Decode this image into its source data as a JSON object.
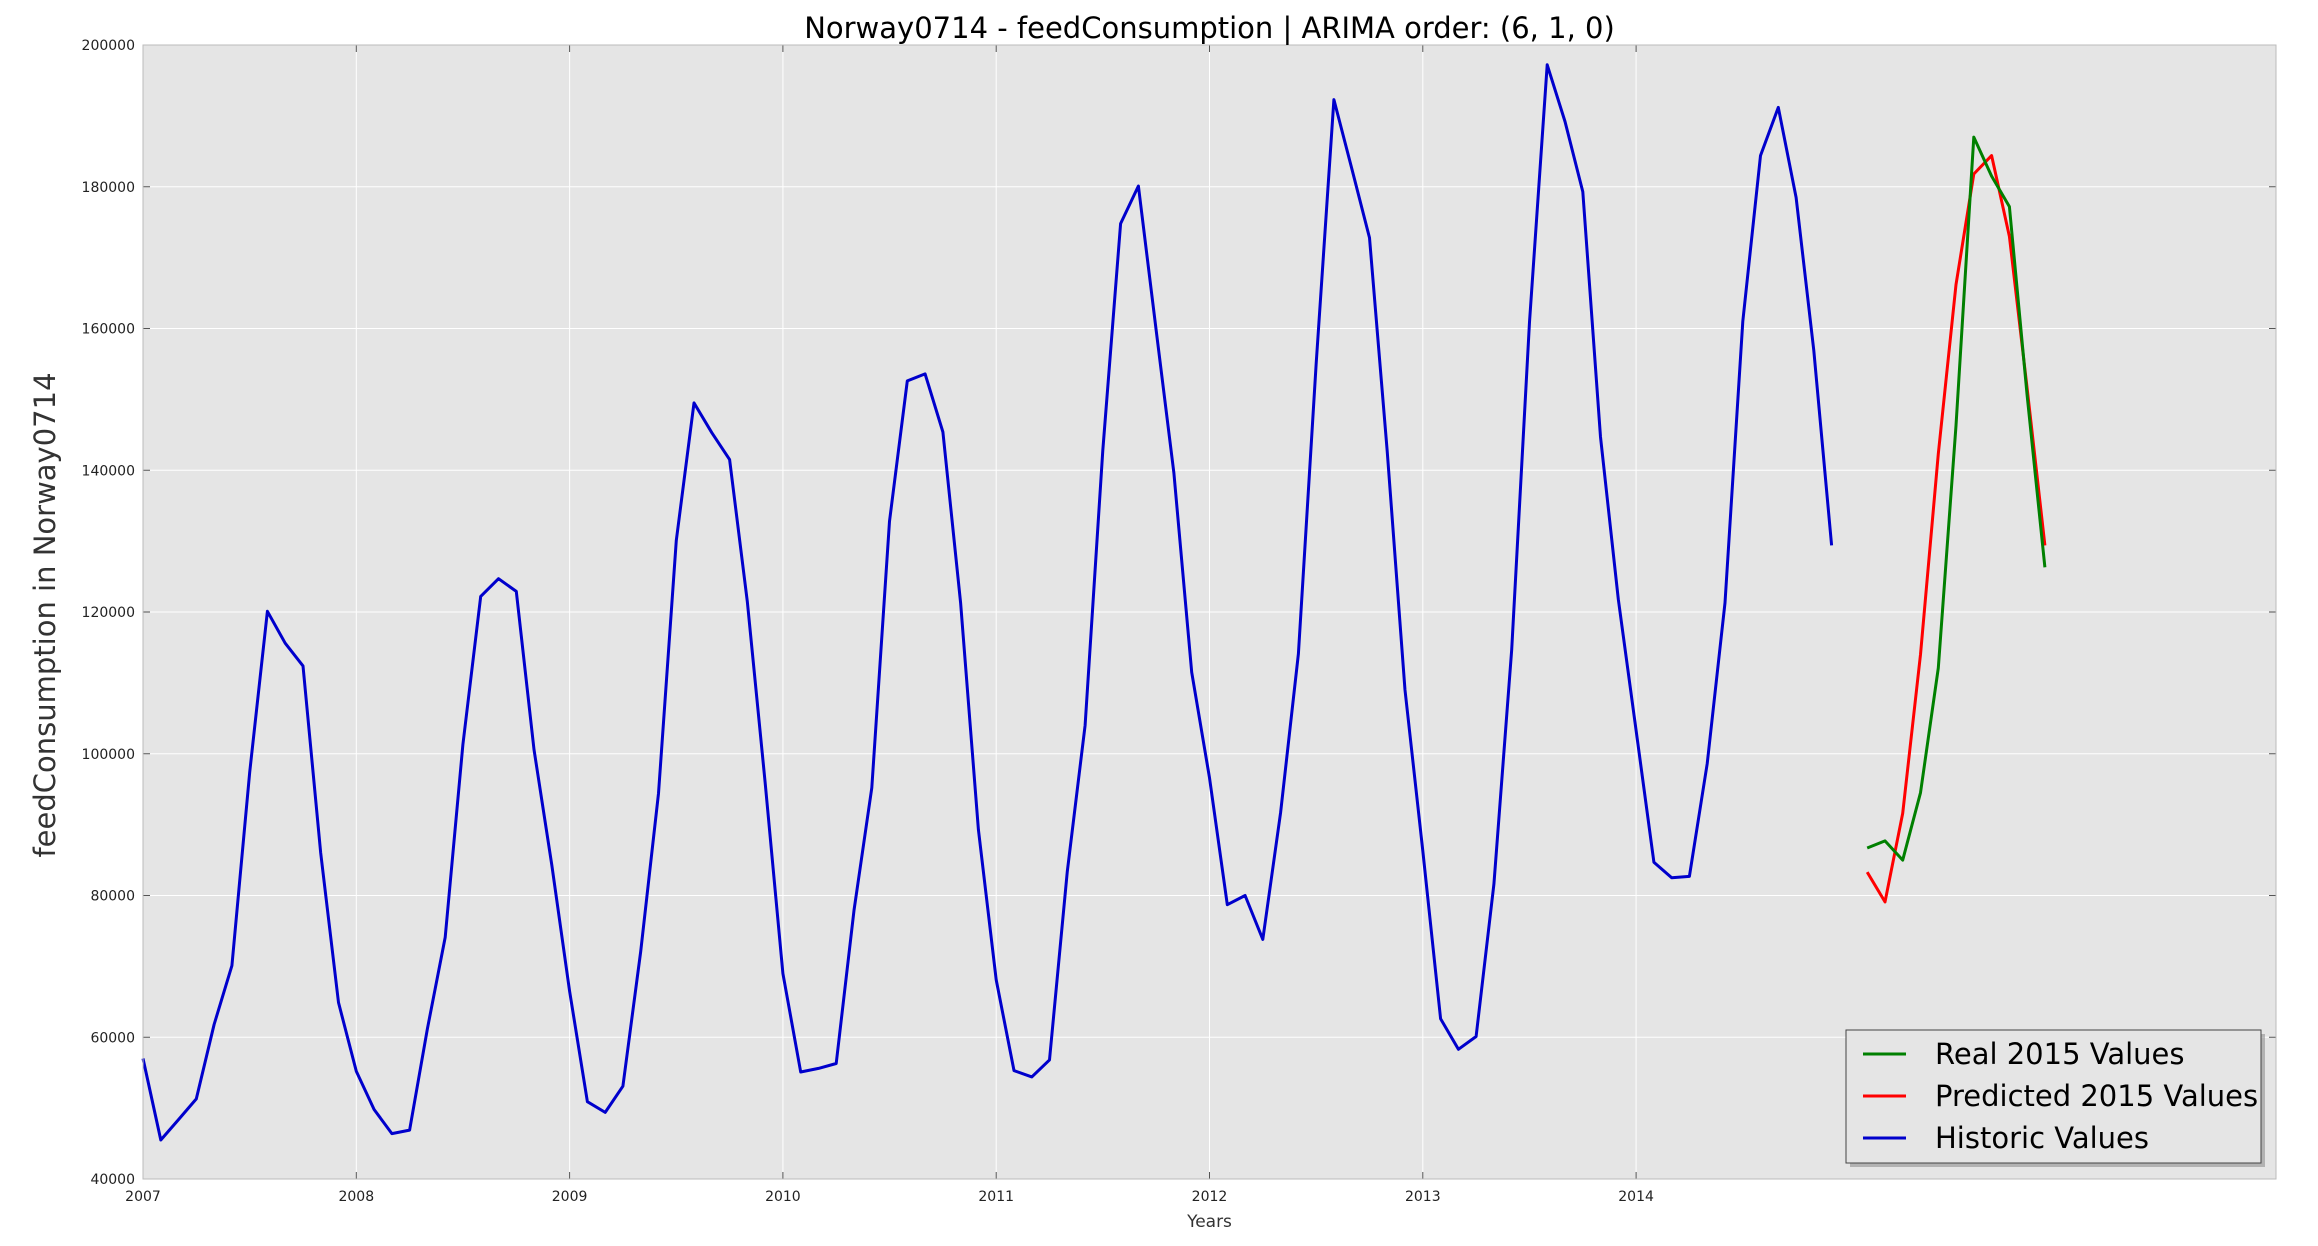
{
  "chart_data": {
    "type": "line",
    "title": "Norway0714 - feedConsumption | ARIMA order: (6, 1, 0)",
    "xlabel": "Years",
    "ylabel": "feedConsumption in Norway0714",
    "xlim": [
      2007.0,
      2017.0
    ],
    "ylim": [
      40000,
      200000
    ],
    "xticks": [
      {
        "value": 2007,
        "label": "2007"
      },
      {
        "value": 2008,
        "label": "2008"
      },
      {
        "value": 2009,
        "label": "2009"
      },
      {
        "value": 2010,
        "label": "2010"
      },
      {
        "value": 2011,
        "label": "2011"
      },
      {
        "value": 2012,
        "label": "2012"
      },
      {
        "value": 2013,
        "label": "2013"
      },
      {
        "value": 2014,
        "label": "2014"
      }
    ],
    "yticks": [
      {
        "value": 40000,
        "label": "40000"
      },
      {
        "value": 60000,
        "label": "60000"
      },
      {
        "value": 80000,
        "label": "80000"
      },
      {
        "value": 100000,
        "label": "100000"
      },
      {
        "value": 120000,
        "label": "120000"
      },
      {
        "value": 140000,
        "label": "140000"
      },
      {
        "value": 160000,
        "label": "160000"
      },
      {
        "value": 180000,
        "label": "180000"
      },
      {
        "value": 200000,
        "label": "200000"
      }
    ],
    "grid": true,
    "legend_position": "bottom-right",
    "background": "#e5e5e5",
    "grid_color": "#ffffff",
    "series": [
      {
        "name": "Historic Values",
        "color": "#0000cc",
        "x": [
          "2007-01",
          "2007-02",
          "2007-03",
          "2007-04",
          "2007-05",
          "2007-06",
          "2007-07",
          "2007-08",
          "2007-09",
          "2007-10",
          "2007-11",
          "2007-12",
          "2008-01",
          "2008-02",
          "2008-03",
          "2008-04",
          "2008-05",
          "2008-06",
          "2008-07",
          "2008-08",
          "2008-09",
          "2008-10",
          "2008-11",
          "2008-12",
          "2009-01",
          "2009-02",
          "2009-03",
          "2009-04",
          "2009-05",
          "2009-06",
          "2009-07",
          "2009-08",
          "2009-09",
          "2009-10",
          "2009-11",
          "2009-12",
          "2010-01",
          "2010-02",
          "2010-03",
          "2010-04",
          "2010-05",
          "2010-06",
          "2010-07",
          "2010-08",
          "2010-09",
          "2010-10",
          "2010-11",
          "2010-12",
          "2011-01",
          "2011-02",
          "2011-03",
          "2011-04",
          "2011-05",
          "2011-06",
          "2011-07",
          "2011-08",
          "2011-09",
          "2011-10",
          "2011-11",
          "2011-12",
          "2012-01",
          "2012-02",
          "2012-03",
          "2012-04",
          "2012-05",
          "2012-06",
          "2012-07",
          "2012-08",
          "2012-09",
          "2012-10",
          "2012-11",
          "2012-12",
          "2013-01",
          "2013-02",
          "2013-03",
          "2013-04",
          "2013-05",
          "2013-06",
          "2013-07",
          "2013-08",
          "2013-09",
          "2013-10",
          "2013-11",
          "2013-12",
          "2014-01",
          "2014-02",
          "2014-03",
          "2014-04",
          "2014-05",
          "2014-06",
          "2014-07",
          "2014-08",
          "2014-09",
          "2014-10",
          "2014-11",
          "2014-12"
        ],
        "values": [
          57000,
          45500,
          48400,
          51300,
          61800,
          70100,
          97400,
          120100,
          115600,
          112400,
          86000,
          64900,
          55200,
          49800,
          46400,
          46900,
          61200,
          74100,
          101300,
          122200,
          124700,
          122900,
          100600,
          84300,
          66500,
          50900,
          49400,
          53100,
          72100,
          94400,
          130100,
          149500,
          145300,
          141500,
          121500,
          96000,
          69000,
          55100,
          55600,
          56300,
          77900,
          95200,
          132800,
          152600,
          153600,
          145400,
          121300,
          89300,
          68100,
          55300,
          54400,
          56800,
          83400,
          104000,
          142800,
          174800,
          180100,
          159700,
          139600,
          111500,
          96600,
          78700,
          80000,
          73800,
          91700,
          114100,
          155100,
          192300,
          182600,
          172800,
          142700,
          109000,
          86300,
          62600,
          58300,
          60100,
          81600,
          114700,
          160900,
          197200,
          189200,
          179300,
          144700,
          121800,
          103300,
          84700,
          82500,
          82700,
          98600,
          121300,
          161000,
          184400,
          191200,
          178500,
          156900,
          129400
        ]
      },
      {
        "name": "Predicted 2015 Values",
        "color": "#ff0000",
        "x": [
          "2015-02",
          "2015-03",
          "2015-04",
          "2015-05",
          "2015-06",
          "2015-07",
          "2015-08",
          "2015-09",
          "2015-10",
          "2015-11",
          "2015-12"
        ],
        "values": [
          83300,
          79100,
          91600,
          114000,
          142300,
          166200,
          181800,
          184400,
          173000,
          151600,
          129400
        ]
      },
      {
        "name": "Real 2015 Values",
        "color": "#008000",
        "x": [
          "2015-02",
          "2015-03",
          "2015-04",
          "2015-05",
          "2015-06",
          "2015-07",
          "2015-08",
          "2015-09",
          "2015-10",
          "2015-11",
          "2015-12"
        ],
        "values": [
          86700,
          87700,
          85000,
          94500,
          112100,
          146300,
          187000,
          181500,
          177200,
          150600,
          126300
        ]
      }
    ],
    "legend": [
      {
        "name": "Real 2015 Values",
        "color": "#008000"
      },
      {
        "name": "Predicted 2015 Values",
        "color": "#ff0000"
      },
      {
        "name": "Historic Values",
        "color": "#0000cc"
      }
    ]
  }
}
